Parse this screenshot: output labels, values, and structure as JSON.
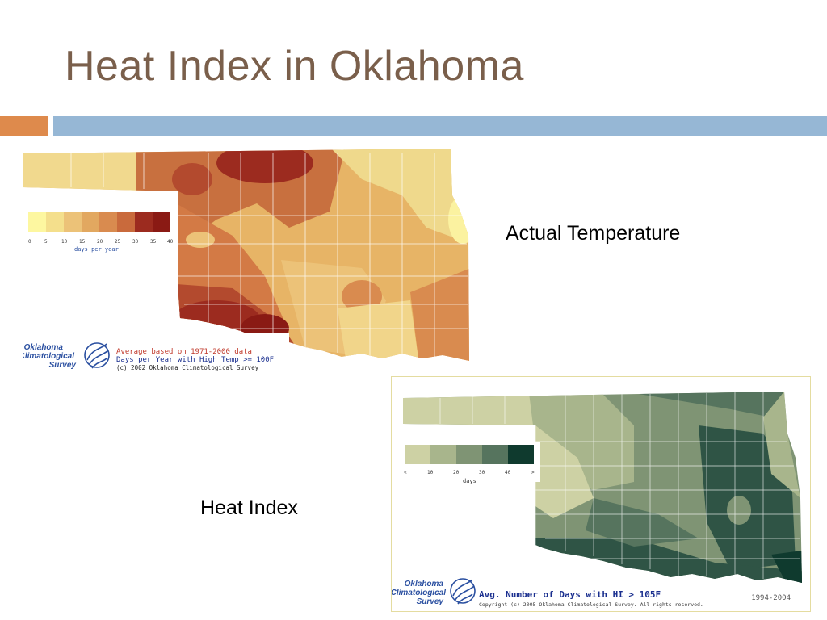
{
  "slide": {
    "title": "Heat Index in Oklahoma",
    "caption_actual": "Actual Temperature",
    "caption_heat": "Heat Index"
  },
  "map_temperature": {
    "legend_ticks": [
      "0",
      "5",
      "10",
      "15",
      "20",
      "25",
      "30",
      "35",
      "40"
    ],
    "legend_unit": "days per year",
    "legend_colors": [
      "#fdf7a0",
      "#f4df8c",
      "#ecc278",
      "#e2a860",
      "#d98b4f",
      "#c96a3c",
      "#b34a2e",
      "#9c2b1f",
      "#8a1a14"
    ],
    "logo_text": [
      "Oklahoma",
      "Climatological",
      "Survey"
    ],
    "note_line1": "Average based on 1971-2000 data",
    "note_line2": "Days per Year with High Temp >= 100F",
    "note_line3": "(c) 2002 Oklahoma Climatological Survey"
  },
  "map_heat_index": {
    "legend_ticks": [
      "<",
      "10",
      "20",
      "30",
      "40",
      ">"
    ],
    "legend_unit": "days",
    "legend_colors": [
      "#cdd1a4",
      "#a8b58c",
      "#7f9474",
      "#56745e",
      "#2f5445",
      "#0f3a2e"
    ],
    "logo_text": [
      "Oklahoma",
      "Climatological",
      "Survey"
    ],
    "note_line1": "Avg. Number of Days with HI > 105F",
    "note_line2": "Copyright (c) 2005 Oklahoma Climatological Survey.  All rights reserved.",
    "period": "1994-2004"
  }
}
